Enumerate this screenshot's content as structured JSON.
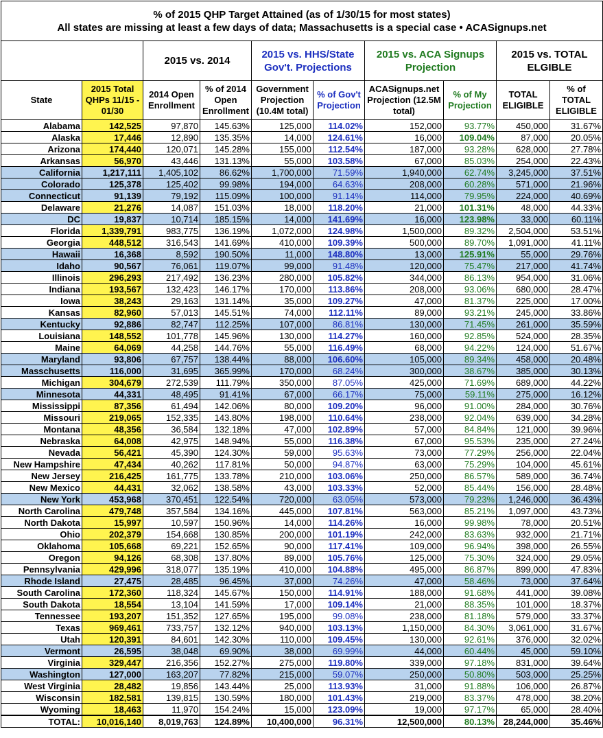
{
  "title": {
    "line1": "% of 2015 QHP Target Attained (as of 1/30/15 for most states)",
    "line2": "All states are missing at least a few days of data; Massachusetts is a special case • ACASignups.net"
  },
  "groups": [
    "2015 vs. 2014",
    "2015 vs. HHS/State Gov't. Projections",
    "2015 vs. ACA Signups Projection",
    "2015 vs. TOTAL ELGIBLE"
  ],
  "columns": [
    "State",
    "2015 Total QHPs 11/15 - 01/30",
    "2014 Open Enrollment",
    "% of 2014 Open Enrollment",
    "Government Projection (10.4M total)",
    "% of Gov't Projection",
    "ACASignups.net Projection (12.5M total)",
    "% of My Projection",
    "TOTAL ELIGIBLE",
    "% of TOTAL ELIGIBLE"
  ],
  "colors": {
    "highlight": "#fff44f",
    "shaded": "#b9d3ee",
    "gov": "#1c2fbf",
    "mine": "#1f7a1f"
  },
  "rows": [
    {
      "cells": [
        "Alabama",
        "142,525",
        "97,870",
        "145.63%",
        "125,000",
        "114.02%",
        "152,000",
        "93.77%",
        "450,000",
        "31.67%"
      ]
    },
    {
      "cells": [
        "Alaska",
        "17,446",
        "12,890",
        "135.35%",
        "14,000",
        "124.61%",
        "16,000",
        "109.04%",
        "87,000",
        "20.05%"
      ]
    },
    {
      "cells": [
        "Arizona",
        "174,440",
        "120,071",
        "145.28%",
        "155,000",
        "112.54%",
        "187,000",
        "93.28%",
        "628,000",
        "27.78%"
      ]
    },
    {
      "cells": [
        "Arkansas",
        "56,970",
        "43,446",
        "131.13%",
        "55,000",
        "103.58%",
        "67,000",
        "85.03%",
        "254,000",
        "22.43%"
      ]
    },
    {
      "cells": [
        "California",
        "1,217,111",
        "1,405,102",
        "86.62%",
        "1,700,000",
        "71.59%",
        "1,940,000",
        "62.74%",
        "3,245,000",
        "37.51%"
      ],
      "shaded": true
    },
    {
      "cells": [
        "Colorado",
        "125,378",
        "125,402",
        "99.98%",
        "194,000",
        "64.63%",
        "208,000",
        "60.28%",
        "571,000",
        "21.96%"
      ],
      "shaded": true
    },
    {
      "cells": [
        "Connecticut",
        "91,139",
        "79,192",
        "115.09%",
        "100,000",
        "91.14%",
        "114,000",
        "79.95%",
        "224,000",
        "40.69%"
      ],
      "shaded": true
    },
    {
      "cells": [
        "Delaware",
        "21,276",
        "14,087",
        "151.03%",
        "18,000",
        "118.20%",
        "21,000",
        "101.31%",
        "48,000",
        "44.33%"
      ]
    },
    {
      "cells": [
        "DC",
        "19,837",
        "10,714",
        "185.15%",
        "14,000",
        "141.69%",
        "16,000",
        "123.98%",
        "33,000",
        "60.11%"
      ],
      "shaded": true
    },
    {
      "cells": [
        "Florida",
        "1,339,791",
        "983,775",
        "136.19%",
        "1,072,000",
        "124.98%",
        "1,500,000",
        "89.32%",
        "2,504,000",
        "53.51%"
      ]
    },
    {
      "cells": [
        "Georgia",
        "448,512",
        "316,543",
        "141.69%",
        "410,000",
        "109.39%",
        "500,000",
        "89.70%",
        "1,091,000",
        "41.11%"
      ]
    },
    {
      "cells": [
        "Hawaii",
        "16,368",
        "8,592",
        "190.50%",
        "11,000",
        "148.80%",
        "13,000",
        "125.91%",
        "55,000",
        "29.76%"
      ],
      "shaded": true
    },
    {
      "cells": [
        "Idaho",
        "90,567",
        "76,061",
        "119.07%",
        "99,000",
        "91.48%",
        "120,000",
        "75.47%",
        "217,000",
        "41.74%"
      ],
      "shaded": true
    },
    {
      "cells": [
        "Illinois",
        "296,293",
        "217,492",
        "136.23%",
        "280,000",
        "105.82%",
        "344,000",
        "86.13%",
        "954,000",
        "31.06%"
      ]
    },
    {
      "cells": [
        "Indiana",
        "193,567",
        "132,423",
        "146.17%",
        "170,000",
        "113.86%",
        "208,000",
        "93.06%",
        "680,000",
        "28.47%"
      ]
    },
    {
      "cells": [
        "Iowa",
        "38,243",
        "29,163",
        "131.14%",
        "35,000",
        "109.27%",
        "47,000",
        "81.37%",
        "225,000",
        "17.00%"
      ]
    },
    {
      "cells": [
        "Kansas",
        "82,960",
        "57,013",
        "145.51%",
        "74,000",
        "112.11%",
        "89,000",
        "93.21%",
        "245,000",
        "33.86%"
      ]
    },
    {
      "cells": [
        "Kentucky",
        "92,886",
        "82,747",
        "112.25%",
        "107,000",
        "86.81%",
        "130,000",
        "71.45%",
        "261,000",
        "35.59%"
      ],
      "shaded": true
    },
    {
      "cells": [
        "Louisiana",
        "148,552",
        "101,778",
        "145.96%",
        "130,000",
        "114.27%",
        "160,000",
        "92.85%",
        "524,000",
        "28.35%"
      ]
    },
    {
      "cells": [
        "Maine",
        "64,069",
        "44,258",
        "144.76%",
        "55,000",
        "116.49%",
        "68,000",
        "94.22%",
        "124,000",
        "51.67%"
      ]
    },
    {
      "cells": [
        "Maryland",
        "93,806",
        "67,757",
        "138.44%",
        "88,000",
        "106.60%",
        "105,000",
        "89.34%",
        "458,000",
        "20.48%"
      ],
      "shaded": true
    },
    {
      "cells": [
        "Masschusetts",
        "116,000",
        "31,695",
        "365.99%",
        "170,000",
        "68.24%",
        "300,000",
        "38.67%",
        "385,000",
        "30.13%"
      ],
      "shaded": true
    },
    {
      "cells": [
        "Michigan",
        "304,679",
        "272,539",
        "111.79%",
        "350,000",
        "87.05%",
        "425,000",
        "71.69%",
        "689,000",
        "44.22%"
      ]
    },
    {
      "cells": [
        "Minnesota",
        "44,331",
        "48,495",
        "91.41%",
        "67,000",
        "66.17%",
        "75,000",
        "59.11%",
        "275,000",
        "16.12%"
      ],
      "shaded": true
    },
    {
      "cells": [
        "Mississippi",
        "87,356",
        "61,494",
        "142.06%",
        "80,000",
        "109.20%",
        "96,000",
        "91.00%",
        "284,000",
        "30.76%"
      ]
    },
    {
      "cells": [
        "Missouri",
        "219,065",
        "152,335",
        "143.80%",
        "198,000",
        "110.64%",
        "238,000",
        "92.04%",
        "639,000",
        "34.28%"
      ]
    },
    {
      "cells": [
        "Montana",
        "48,356",
        "36,584",
        "132.18%",
        "47,000",
        "102.89%",
        "57,000",
        "84.84%",
        "121,000",
        "39.96%"
      ]
    },
    {
      "cells": [
        "Nebraska",
        "64,008",
        "42,975",
        "148.94%",
        "55,000",
        "116.38%",
        "67,000",
        "95.53%",
        "235,000",
        "27.24%"
      ]
    },
    {
      "cells": [
        "Nevada",
        "56,421",
        "45,390",
        "124.30%",
        "59,000",
        "95.63%",
        "73,000",
        "77.29%",
        "256,000",
        "22.04%"
      ]
    },
    {
      "cells": [
        "New Hampshire",
        "47,434",
        "40,262",
        "117.81%",
        "50,000",
        "94.87%",
        "63,000",
        "75.29%",
        "104,000",
        "45.61%"
      ]
    },
    {
      "cells": [
        "New Jersey",
        "216,425",
        "161,775",
        "133.78%",
        "210,000",
        "103.06%",
        "250,000",
        "86.57%",
        "589,000",
        "36.74%"
      ]
    },
    {
      "cells": [
        "New Mexico",
        "44,431",
        "32,062",
        "138.58%",
        "43,000",
        "103.33%",
        "52,000",
        "85.44%",
        "156,000",
        "28.48%"
      ]
    },
    {
      "cells": [
        "New York",
        "453,968",
        "370,451",
        "122.54%",
        "720,000",
        "63.05%",
        "573,000",
        "79.23%",
        "1,246,000",
        "36.43%"
      ],
      "shaded": true
    },
    {
      "cells": [
        "North Carolina",
        "479,748",
        "357,584",
        "134.16%",
        "445,000",
        "107.81%",
        "563,000",
        "85.21%",
        "1,097,000",
        "43.73%"
      ]
    },
    {
      "cells": [
        "North Dakota",
        "15,997",
        "10,597",
        "150.96%",
        "14,000",
        "114.26%",
        "16,000",
        "99.98%",
        "78,000",
        "20.51%"
      ]
    },
    {
      "cells": [
        "Ohio",
        "202,379",
        "154,668",
        "130.85%",
        "200,000",
        "101.19%",
        "242,000",
        "83.63%",
        "932,000",
        "21.71%"
      ]
    },
    {
      "cells": [
        "Oklahoma",
        "105,668",
        "69,221",
        "152.65%",
        "90,000",
        "117.41%",
        "109,000",
        "96.94%",
        "398,000",
        "26.55%"
      ]
    },
    {
      "cells": [
        "Oregon",
        "94,126",
        "68,308",
        "137.80%",
        "89,000",
        "105.76%",
        "125,000",
        "75.30%",
        "324,000",
        "29.05%"
      ]
    },
    {
      "cells": [
        "Pennsylvania",
        "429,996",
        "318,077",
        "135.19%",
        "410,000",
        "104.88%",
        "495,000",
        "86.87%",
        "899,000",
        "47.83%"
      ]
    },
    {
      "cells": [
        "Rhode Island",
        "27,475",
        "28,485",
        "96.45%",
        "37,000",
        "74.26%",
        "47,000",
        "58.46%",
        "73,000",
        "37.64%"
      ],
      "shaded": true
    },
    {
      "cells": [
        "South Carolina",
        "172,360",
        "118,324",
        "145.67%",
        "150,000",
        "114.91%",
        "188,000",
        "91.68%",
        "441,000",
        "39.08%"
      ]
    },
    {
      "cells": [
        "South Dakota",
        "18,554",
        "13,104",
        "141.59%",
        "17,000",
        "109.14%",
        "21,000",
        "88.35%",
        "101,000",
        "18.37%"
      ]
    },
    {
      "cells": [
        "Tennessee",
        "193,207",
        "151,352",
        "127.65%",
        "195,000",
        "99.08%",
        "238,000",
        "81.18%",
        "579,000",
        "33.37%"
      ]
    },
    {
      "cells": [
        "Texas",
        "969,461",
        "733,757",
        "132.12%",
        "940,000",
        "103.13%",
        "1,150,000",
        "84.30%",
        "3,061,000",
        "31.67%"
      ]
    },
    {
      "cells": [
        "Utah",
        "120,391",
        "84,601",
        "142.30%",
        "110,000",
        "109.45%",
        "130,000",
        "92.61%",
        "376,000",
        "32.02%"
      ]
    },
    {
      "cells": [
        "Vermont",
        "26,595",
        "38,048",
        "69.90%",
        "38,000",
        "69.99%",
        "44,000",
        "60.44%",
        "45,000",
        "59.10%"
      ],
      "shaded": true
    },
    {
      "cells": [
        "Virginia",
        "329,447",
        "216,356",
        "152.27%",
        "275,000",
        "119.80%",
        "339,000",
        "97.18%",
        "831,000",
        "39.64%"
      ]
    },
    {
      "cells": [
        "Washington",
        "127,000",
        "163,207",
        "77.82%",
        "215,000",
        "59.07%",
        "250,000",
        "50.80%",
        "503,000",
        "25.25%"
      ],
      "shaded": true
    },
    {
      "cells": [
        "West Virginia",
        "28,482",
        "19,856",
        "143.44%",
        "25,000",
        "113.93%",
        "31,000",
        "91.88%",
        "106,000",
        "26.87%"
      ]
    },
    {
      "cells": [
        "Wisconsin",
        "182,581",
        "139,815",
        "130.59%",
        "180,000",
        "101.43%",
        "219,000",
        "83.37%",
        "478,000",
        "38.20%"
      ]
    },
    {
      "cells": [
        "Wyoming",
        "18,463",
        "11,970",
        "154.24%",
        "15,000",
        "123.09%",
        "19,000",
        "97.17%",
        "65,000",
        "28.40%"
      ]
    }
  ],
  "total": [
    "TOTAL:",
    "10,016,140",
    "8,019,763",
    "124.89%",
    "10,400,000",
    "96.31%",
    "12,500,000",
    "80.13%",
    "28,244,000",
    "35.46%"
  ]
}
